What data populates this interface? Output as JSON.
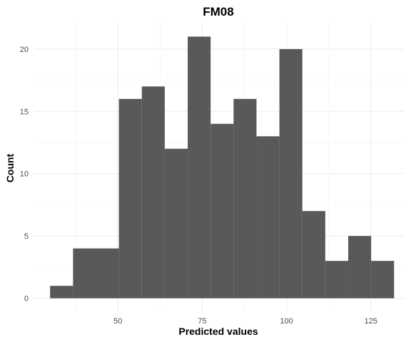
{
  "chart_data": {
    "type": "bar",
    "title": "FM08",
    "xlabel": "Predicted values",
    "ylabel": "Count",
    "bar_color": "#595959",
    "grid_color": "#ebebeb",
    "bin_width": 6.8,
    "bins": [
      {
        "start": 29.9,
        "count": 1
      },
      {
        "start": 36.7,
        "count": 4
      },
      {
        "start": 43.5,
        "count": 4
      },
      {
        "start": 50.3,
        "count": 16
      },
      {
        "start": 57.1,
        "count": 17
      },
      {
        "start": 63.9,
        "count": 12
      },
      {
        "start": 70.7,
        "count": 21
      },
      {
        "start": 77.5,
        "count": 14
      },
      {
        "start": 84.3,
        "count": 16
      },
      {
        "start": 91.1,
        "count": 13
      },
      {
        "start": 97.9,
        "count": 20
      },
      {
        "start": 104.7,
        "count": 7
      },
      {
        "start": 111.5,
        "count": 3
      },
      {
        "start": 118.3,
        "count": 5
      },
      {
        "start": 125.1,
        "count": 3
      }
    ],
    "x_ticks": [
      50,
      75,
      100,
      125
    ],
    "y_ticks": [
      0,
      5,
      10,
      15,
      20
    ],
    "xlim": [
      25.2,
      134.8
    ],
    "ylim": [
      -1.05,
      22.05
    ],
    "grid": true
  }
}
